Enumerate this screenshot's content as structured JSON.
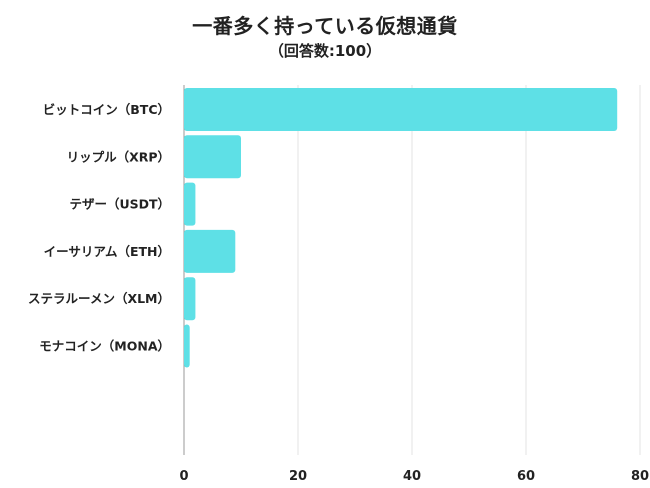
{
  "chart_data": {
    "type": "bar",
    "orientation": "horizontal",
    "title": "一番多く持っている仮想通貨",
    "subtitle": "（回答数:100）",
    "categories": [
      "ビットコイン（BTC）",
      "リップル（XRP）",
      "テザー（USDT）",
      "イーサリアム（ETH）",
      "ステラルーメン（XLM）",
      "モナコイン（MONA）"
    ],
    "values": [
      76,
      10,
      2,
      9,
      2,
      1
    ],
    "xlim": [
      0,
      80
    ],
    "xticks": [
      0,
      20,
      40,
      60,
      80
    ],
    "grid": true,
    "bar_color": "#5ee0e6",
    "grid_color": "#e3e3e3"
  }
}
